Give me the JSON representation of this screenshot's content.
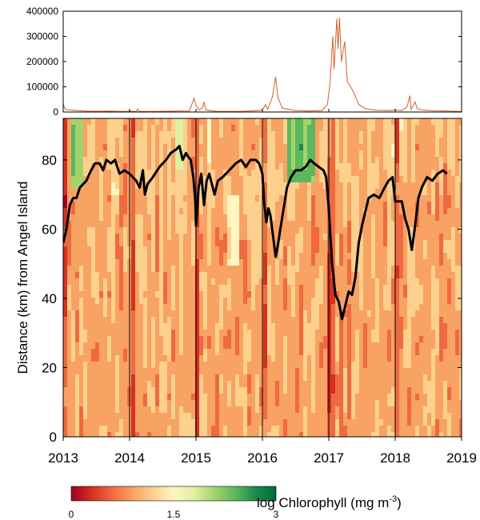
{
  "chart_data": [
    {
      "type": "line",
      "panel": "top",
      "title": "",
      "xlabel": "",
      "ylabel": "",
      "ylim": [
        0,
        400000
      ],
      "yticks": [
        0,
        100000,
        200000,
        300000,
        400000
      ],
      "ytick_labels": [
        "0",
        "100000",
        "200000",
        "300000",
        "400000"
      ],
      "series": [
        {
          "color": "#d2602a",
          "points": [
            [
              2013.0,
              35000
            ],
            [
              2013.02,
              15000
            ],
            [
              2013.06,
              9000
            ],
            [
              2013.15,
              7000
            ],
            [
              2013.3,
              4000
            ],
            [
              2013.5,
              3000
            ],
            [
              2013.7,
              3500
            ],
            [
              2013.9,
              2500
            ],
            [
              2014.0,
              3000
            ],
            [
              2014.1,
              2000
            ],
            [
              2014.12,
              12000
            ],
            [
              2014.14,
              3000
            ],
            [
              2014.3,
              2000
            ],
            [
              2014.5,
              3000
            ],
            [
              2014.7,
              3500
            ],
            [
              2014.9,
              4000
            ],
            [
              2014.95,
              40000
            ],
            [
              2014.97,
              55000
            ],
            [
              2015.0,
              25000
            ],
            [
              2015.05,
              8000
            ],
            [
              2015.1,
              18000
            ],
            [
              2015.12,
              40000
            ],
            [
              2015.15,
              8000
            ],
            [
              2015.3,
              3000
            ],
            [
              2015.5,
              2500
            ],
            [
              2015.7,
              3000
            ],
            [
              2015.9,
              5000
            ],
            [
              2016.0,
              8000
            ],
            [
              2016.05,
              30000
            ],
            [
              2016.08,
              10000
            ],
            [
              2016.15,
              60000
            ],
            [
              2016.2,
              140000
            ],
            [
              2016.23,
              60000
            ],
            [
              2016.3,
              15000
            ],
            [
              2016.5,
              6000
            ],
            [
              2016.7,
              4000
            ],
            [
              2016.9,
              6000
            ],
            [
              2016.98,
              30000
            ],
            [
              2017.02,
              120000
            ],
            [
              2017.06,
              300000
            ],
            [
              2017.08,
              170000
            ],
            [
              2017.12,
              370000
            ],
            [
              2017.14,
              250000
            ],
            [
              2017.16,
              375000
            ],
            [
              2017.19,
              200000
            ],
            [
              2017.24,
              280000
            ],
            [
              2017.28,
              120000
            ],
            [
              2017.33,
              100000
            ],
            [
              2017.38,
              75000
            ],
            [
              2017.45,
              30000
            ],
            [
              2017.55,
              14000
            ],
            [
              2017.7,
              7000
            ],
            [
              2017.9,
              6000
            ],
            [
              2018.0,
              8000
            ],
            [
              2018.1,
              6000
            ],
            [
              2018.18,
              20000
            ],
            [
              2018.22,
              65000
            ],
            [
              2018.24,
              10000
            ],
            [
              2018.3,
              40000
            ],
            [
              2018.33,
              14000
            ],
            [
              2018.4,
              9000
            ],
            [
              2018.6,
              4500
            ],
            [
              2018.8,
              4000
            ],
            [
              2018.95,
              2500
            ],
            [
              2019.0,
              2000
            ]
          ]
        }
      ],
      "xlim": [
        2013,
        2019
      ]
    },
    {
      "type": "heatmap",
      "panel": "bottom",
      "title": "",
      "xlabel": "",
      "ylabel": "Distance (km) from Angel Island",
      "xlim": [
        2013,
        2019
      ],
      "ylim": [
        0,
        92
      ],
      "xticks": [
        2013,
        2014,
        2015,
        2016,
        2017,
        2018,
        2019
      ],
      "xtick_labels": [
        "2013",
        "2014",
        "2015",
        "2016",
        "2017",
        "2018",
        "2019"
      ],
      "yticks": [
        0,
        20,
        40,
        60,
        80
      ],
      "ytick_labels": [
        "0",
        "20",
        "40",
        "60",
        "80"
      ],
      "year_lines": [
        2014,
        2015,
        2016,
        2017,
        2018
      ],
      "colorbar": {
        "label": "log Chlorophyll (mg m",
        "label_superscript": "-3",
        "label_close": ")",
        "min": 0,
        "max": 3,
        "ticks": [
          0,
          1.5,
          3
        ],
        "tick_labels": [
          "0",
          "1.5",
          "3"
        ],
        "colors": [
          "#9e0024",
          "#d7301f",
          "#ef6a40",
          "#f8a264",
          "#fdd08d",
          "#fff5c0",
          "#dff0a0",
          "#a3d36b",
          "#5cb85c",
          "#1e8a4a",
          "#006837"
        ]
      },
      "overlay_line": {
        "color": "#000000",
        "points": [
          [
            2013.0,
            56
          ],
          [
            2013.05,
            60
          ],
          [
            2013.1,
            67
          ],
          [
            2013.15,
            69
          ],
          [
            2013.2,
            69
          ],
          [
            2013.25,
            72
          ],
          [
            2013.3,
            73
          ],
          [
            2013.35,
            74
          ],
          [
            2013.42,
            77
          ],
          [
            2013.48,
            79
          ],
          [
            2013.55,
            79
          ],
          [
            2013.6,
            77
          ],
          [
            2013.65,
            80
          ],
          [
            2013.72,
            79
          ],
          [
            2013.78,
            80
          ],
          [
            2013.85,
            76
          ],
          [
            2013.92,
            77
          ],
          [
            2014.0,
            76
          ],
          [
            2014.05,
            75
          ],
          [
            2014.1,
            74
          ],
          [
            2014.15,
            72
          ],
          [
            2014.2,
            77
          ],
          [
            2014.23,
            70
          ],
          [
            2014.27,
            73
          ],
          [
            2014.35,
            75
          ],
          [
            2014.45,
            78
          ],
          [
            2014.55,
            80
          ],
          [
            2014.62,
            82
          ],
          [
            2014.7,
            83
          ],
          [
            2014.75,
            84
          ],
          [
            2014.8,
            80
          ],
          [
            2014.85,
            82
          ],
          [
            2014.88,
            81
          ],
          [
            2014.92,
            80
          ],
          [
            2014.96,
            75
          ],
          [
            2014.99,
            68
          ],
          [
            2015.0,
            61
          ],
          [
            2015.04,
            72
          ],
          [
            2015.08,
            76
          ],
          [
            2015.12,
            67
          ],
          [
            2015.16,
            74
          ],
          [
            2015.2,
            76
          ],
          [
            2015.28,
            70
          ],
          [
            2015.33,
            74
          ],
          [
            2015.4,
            75
          ],
          [
            2015.5,
            77
          ],
          [
            2015.6,
            79
          ],
          [
            2015.68,
            80
          ],
          [
            2015.75,
            78
          ],
          [
            2015.82,
            80
          ],
          [
            2015.9,
            80
          ],
          [
            2015.95,
            79
          ],
          [
            2016.0,
            76
          ],
          [
            2016.03,
            67
          ],
          [
            2016.06,
            62
          ],
          [
            2016.09,
            66
          ],
          [
            2016.12,
            64
          ],
          [
            2016.16,
            58
          ],
          [
            2016.2,
            52
          ],
          [
            2016.23,
            55
          ],
          [
            2016.27,
            60
          ],
          [
            2016.32,
            66
          ],
          [
            2016.37,
            72
          ],
          [
            2016.43,
            75
          ],
          [
            2016.5,
            77
          ],
          [
            2016.58,
            77
          ],
          [
            2016.65,
            78
          ],
          [
            2016.72,
            80
          ],
          [
            2016.78,
            79
          ],
          [
            2016.85,
            78
          ],
          [
            2016.92,
            77
          ],
          [
            2016.96,
            75
          ],
          [
            2017.0,
            66
          ],
          [
            2017.05,
            50
          ],
          [
            2017.1,
            41
          ],
          [
            2017.15,
            39
          ],
          [
            2017.2,
            34
          ],
          [
            2017.25,
            38
          ],
          [
            2017.3,
            42
          ],
          [
            2017.35,
            41
          ],
          [
            2017.4,
            46
          ],
          [
            2017.45,
            56
          ],
          [
            2017.5,
            61
          ],
          [
            2017.55,
            65
          ],
          [
            2017.6,
            69
          ],
          [
            2017.68,
            70
          ],
          [
            2017.76,
            69
          ],
          [
            2017.84,
            72
          ],
          [
            2017.9,
            74
          ],
          [
            2017.96,
            75
          ],
          [
            2018.0,
            68
          ],
          [
            2018.05,
            68
          ],
          [
            2018.1,
            68
          ],
          [
            2018.15,
            63
          ],
          [
            2018.2,
            60
          ],
          [
            2018.25,
            54
          ],
          [
            2018.3,
            61
          ],
          [
            2018.35,
            69
          ],
          [
            2018.4,
            72
          ],
          [
            2018.48,
            75
          ],
          [
            2018.56,
            74
          ],
          [
            2018.64,
            76
          ],
          [
            2018.72,
            77
          ],
          [
            2018.78,
            76
          ]
        ]
      }
    }
  ]
}
